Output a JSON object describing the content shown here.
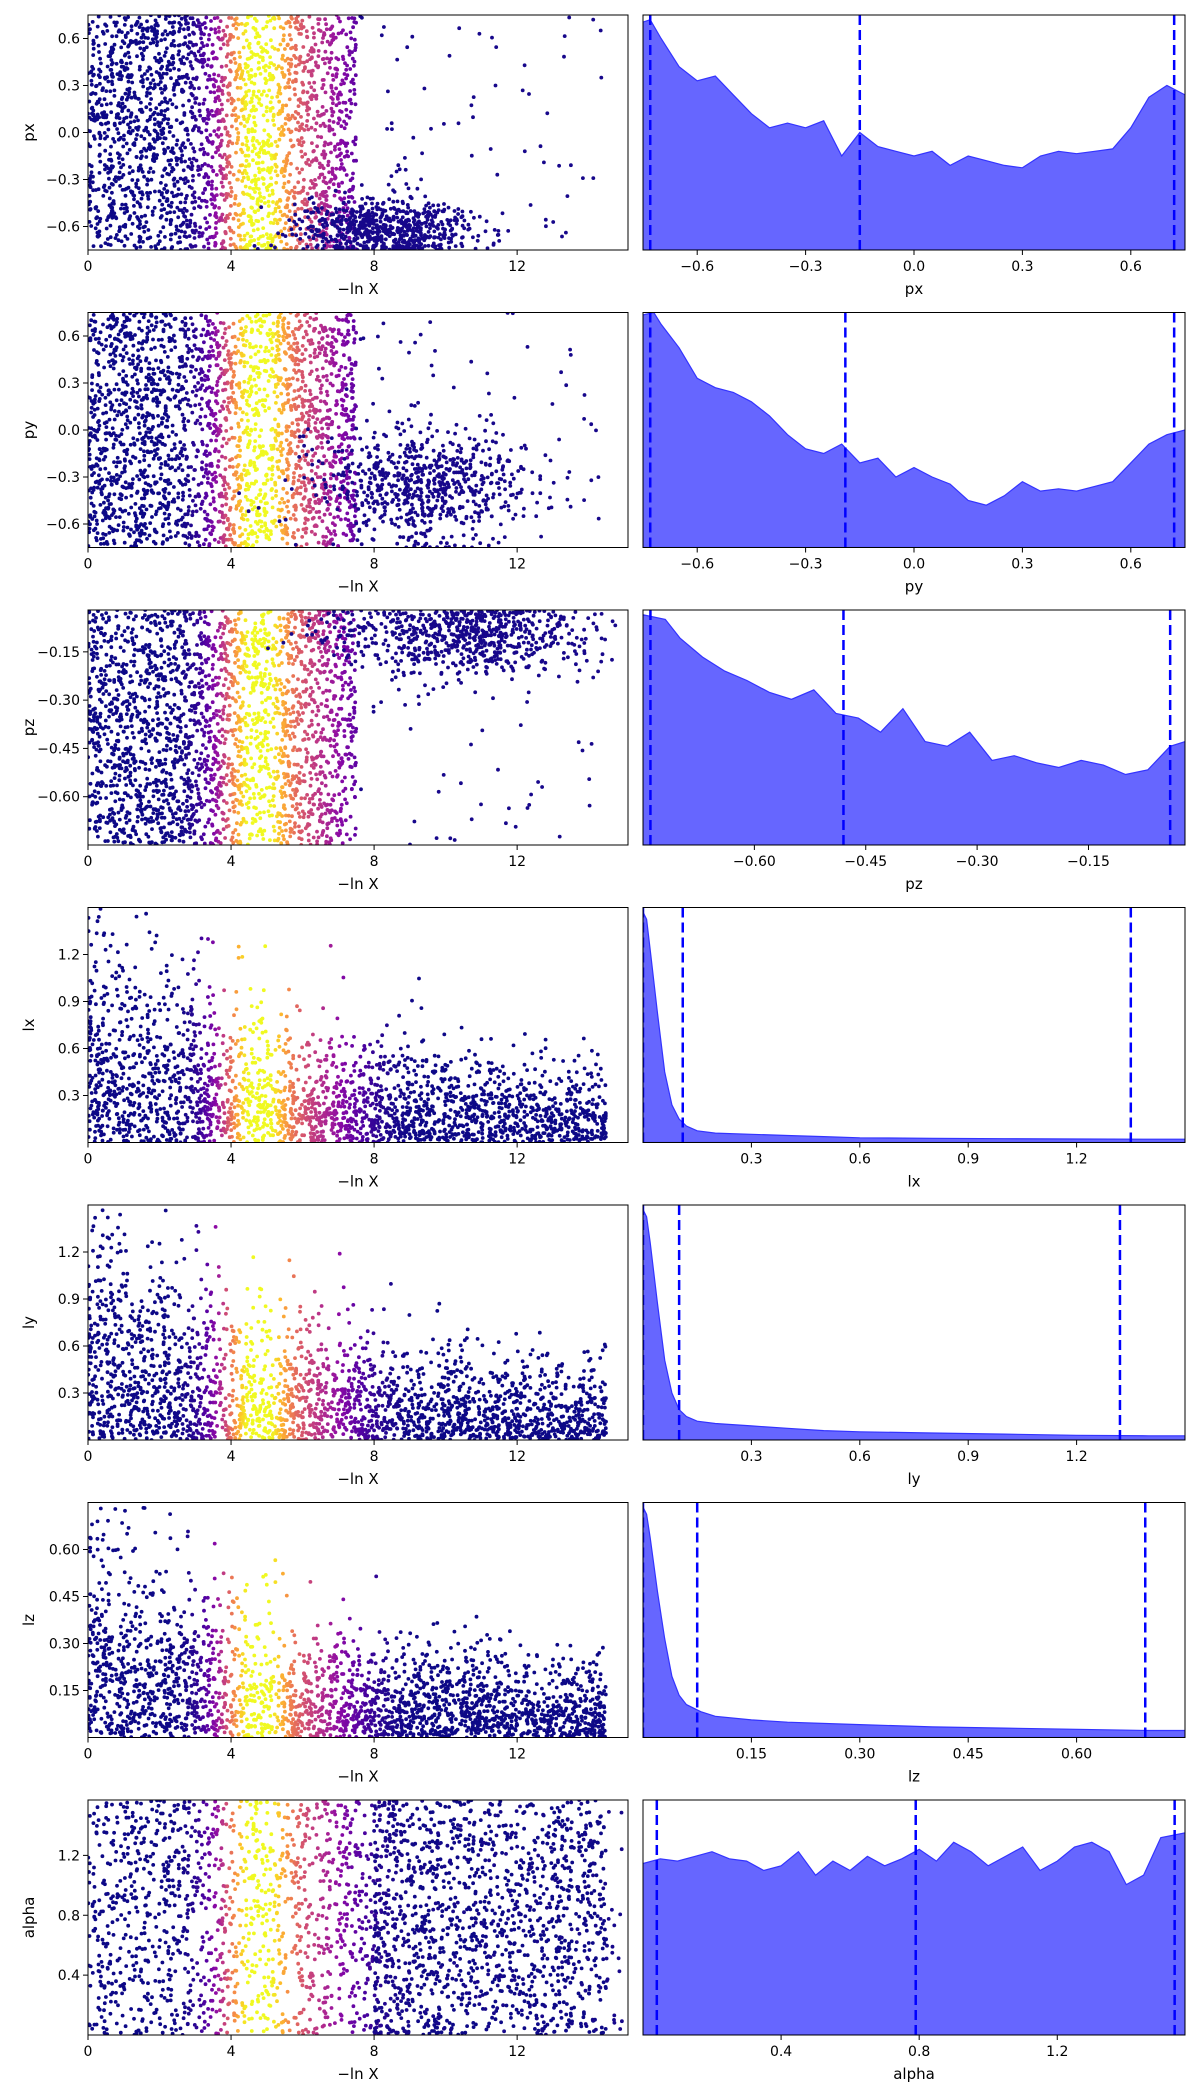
{
  "figure": {
    "colors": {
      "kde_fill": "#6666ff",
      "kde_edge": "#3333ff",
      "quantile_line": "#0000ff",
      "axes_edge": "#000000"
    },
    "scatter_colormap": "plasma"
  },
  "chart_data": [
    {
      "type": "scatter",
      "param": "px",
      "xlabel": "−ln X",
      "ylabel": "px",
      "xlim": [
        0,
        15.1
      ],
      "ylim": [
        -0.75,
        0.75
      ],
      "xticks": [
        0,
        4,
        8,
        12
      ],
      "xtick_labels": [
        "0",
        "4",
        "8",
        "12"
      ],
      "yticks": [
        -0.6,
        -0.3,
        0.0,
        0.3,
        0.6
      ],
      "ytick_labels": [
        "−0.6",
        "−0.3",
        "0.0",
        "0.3",
        "0.6"
      ],
      "peak_lnx": 4.7,
      "dense_until": 7.5,
      "tail": {
        "center_x": 8.3,
        "center_y": -0.62,
        "spread_x": 1.2,
        "spread_y": 0.1
      }
    },
    {
      "type": "area",
      "param": "px",
      "xlabel": "px",
      "xlim": [
        -0.75,
        0.75
      ],
      "xticks": [
        -0.6,
        -0.3,
        0.0,
        0.3,
        0.6
      ],
      "xtick_labels": [
        "−0.6",
        "−0.3",
        "0.0",
        "0.3",
        "0.6"
      ],
      "quantiles": [
        -0.73,
        -0.15,
        0.72
      ],
      "density": {
        "x": [
          -0.75,
          -0.73,
          -0.7,
          -0.65,
          -0.6,
          -0.55,
          -0.5,
          -0.45,
          -0.4,
          -0.35,
          -0.3,
          -0.25,
          -0.2,
          -0.15,
          -0.1,
          -0.05,
          0.0,
          0.05,
          0.1,
          0.15,
          0.2,
          0.25,
          0.3,
          0.35,
          0.4,
          0.45,
          0.5,
          0.55,
          0.6,
          0.65,
          0.7,
          0.75
        ],
        "y": [
          0.97,
          0.98,
          0.9,
          0.78,
          0.72,
          0.74,
          0.66,
          0.58,
          0.52,
          0.54,
          0.52,
          0.55,
          0.4,
          0.5,
          0.44,
          0.42,
          0.4,
          0.42,
          0.36,
          0.4,
          0.38,
          0.36,
          0.35,
          0.4,
          0.42,
          0.41,
          0.42,
          0.43,
          0.52,
          0.65,
          0.7,
          0.66
        ]
      }
    },
    {
      "type": "scatter",
      "param": "py",
      "xlabel": "−ln X",
      "ylabel": "py",
      "xlim": [
        0,
        15.1
      ],
      "ylim": [
        -0.75,
        0.75
      ],
      "xticks": [
        0,
        4,
        8,
        12
      ],
      "xtick_labels": [
        "0",
        "4",
        "8",
        "12"
      ],
      "yticks": [
        -0.6,
        -0.3,
        0.0,
        0.3,
        0.6
      ],
      "ytick_labels": [
        "−0.6",
        "−0.3",
        "0.0",
        "0.3",
        "0.6"
      ],
      "peak_lnx": 4.7,
      "dense_until": 7.5,
      "tail": {
        "center_x": 9.5,
        "center_y": -0.35,
        "spread_x": 1.5,
        "spread_y": 0.18
      }
    },
    {
      "type": "area",
      "param": "py",
      "xlabel": "py",
      "xlim": [
        -0.75,
        0.75
      ],
      "xticks": [
        -0.6,
        -0.3,
        0.0,
        0.3,
        0.6
      ],
      "xtick_labels": [
        "−0.6",
        "−0.3",
        "0.0",
        "0.3",
        "0.6"
      ],
      "quantiles": [
        -0.73,
        -0.19,
        0.72
      ],
      "density": {
        "x": [
          -0.75,
          -0.72,
          -0.7,
          -0.65,
          -0.6,
          -0.55,
          -0.5,
          -0.45,
          -0.4,
          -0.35,
          -0.3,
          -0.25,
          -0.2,
          -0.15,
          -0.1,
          -0.05,
          0.0,
          0.05,
          0.1,
          0.15,
          0.2,
          0.25,
          0.3,
          0.35,
          0.4,
          0.45,
          0.5,
          0.55,
          0.6,
          0.65,
          0.7,
          0.75
        ],
        "y": [
          0.99,
          1.0,
          0.95,
          0.85,
          0.72,
          0.68,
          0.66,
          0.62,
          0.56,
          0.48,
          0.42,
          0.4,
          0.44,
          0.36,
          0.38,
          0.3,
          0.34,
          0.3,
          0.27,
          0.2,
          0.18,
          0.22,
          0.28,
          0.24,
          0.25,
          0.24,
          0.26,
          0.28,
          0.36,
          0.44,
          0.48,
          0.5
        ]
      }
    },
    {
      "type": "scatter",
      "param": "pz",
      "xlabel": "−ln X",
      "ylabel": "pz",
      "xlim": [
        0,
        15.1
      ],
      "ylim": [
        -0.75,
        -0.02
      ],
      "xticks": [
        0,
        4,
        8,
        12
      ],
      "xtick_labels": [
        "0",
        "4",
        "8",
        "12"
      ],
      "yticks": [
        -0.6,
        -0.45,
        -0.3,
        -0.15
      ],
      "ytick_labels": [
        "−0.60",
        "−0.45",
        "−0.30",
        "−0.15"
      ],
      "peak_lnx": 4.7,
      "dense_until": 7.5,
      "tail": {
        "center_x": 10.5,
        "center_y": -0.1,
        "spread_x": 1.8,
        "spread_y": 0.06
      }
    },
    {
      "type": "area",
      "param": "pz",
      "xlabel": "pz",
      "xlim": [
        -0.75,
        -0.02
      ],
      "xticks": [
        -0.6,
        -0.45,
        -0.3,
        -0.15
      ],
      "xtick_labels": [
        "−0.60",
        "−0.45",
        "−0.30",
        "−0.15"
      ],
      "quantiles": [
        -0.74,
        -0.48,
        -0.04
      ],
      "density": {
        "x": [
          -0.75,
          -0.72,
          -0.7,
          -0.67,
          -0.64,
          -0.61,
          -0.58,
          -0.55,
          -0.52,
          -0.49,
          -0.46,
          -0.43,
          -0.4,
          -0.37,
          -0.34,
          -0.31,
          -0.28,
          -0.25,
          -0.22,
          -0.19,
          -0.16,
          -0.13,
          -0.1,
          -0.07,
          -0.04,
          -0.02
        ],
        "y": [
          0.98,
          0.96,
          0.88,
          0.8,
          0.74,
          0.7,
          0.65,
          0.62,
          0.66,
          0.56,
          0.54,
          0.48,
          0.58,
          0.44,
          0.42,
          0.48,
          0.36,
          0.38,
          0.35,
          0.33,
          0.36,
          0.34,
          0.3,
          0.32,
          0.42,
          0.44
        ]
      }
    },
    {
      "type": "scatter",
      "param": "lx",
      "xlabel": "−ln X",
      "ylabel": "lx",
      "xlim": [
        0,
        15.1
      ],
      "ylim": [
        0,
        1.5
      ],
      "xticks": [
        0,
        4,
        8,
        12
      ],
      "xtick_labels": [
        "0",
        "4",
        "8",
        "12"
      ],
      "yticks": [
        0.3,
        0.6,
        0.9,
        1.2
      ],
      "ytick_labels": [
        "0.3",
        "0.6",
        "0.9",
        "1.2"
      ],
      "peak_lnx": 4.7,
      "dense_until": 14.5,
      "decay": true
    },
    {
      "type": "area",
      "param": "lx",
      "xlabel": "lx",
      "xlim": [
        0,
        1.5
      ],
      "xticks": [
        0.3,
        0.6,
        0.9,
        1.2
      ],
      "xtick_labels": [
        "0.3",
        "0.6",
        "0.9",
        "1.2"
      ],
      "quantiles": [
        0.0,
        0.11,
        1.35
      ],
      "density": {
        "x": [
          0.0,
          0.01,
          0.02,
          0.04,
          0.06,
          0.08,
          0.1,
          0.12,
          0.15,
          0.2,
          0.3,
          0.4,
          0.5,
          0.6,
          0.8,
          1.0,
          1.2,
          1.4,
          1.5
        ],
        "y": [
          0.98,
          0.95,
          0.82,
          0.55,
          0.3,
          0.16,
          0.1,
          0.07,
          0.05,
          0.04,
          0.035,
          0.03,
          0.025,
          0.02,
          0.018,
          0.016,
          0.015,
          0.014,
          0.014
        ]
      }
    },
    {
      "type": "scatter",
      "param": "ly",
      "xlabel": "−ln X",
      "ylabel": "ly",
      "xlim": [
        0,
        15.1
      ],
      "ylim": [
        0,
        1.5
      ],
      "xticks": [
        0,
        4,
        8,
        12
      ],
      "xtick_labels": [
        "0",
        "4",
        "8",
        "12"
      ],
      "yticks": [
        0.3,
        0.6,
        0.9,
        1.2
      ],
      "ytick_labels": [
        "0.3",
        "0.6",
        "0.9",
        "1.2"
      ],
      "peak_lnx": 4.7,
      "dense_until": 14.5,
      "decay": true
    },
    {
      "type": "area",
      "param": "ly",
      "xlabel": "ly",
      "xlim": [
        0,
        1.5
      ],
      "xticks": [
        0.3,
        0.6,
        0.9,
        1.2
      ],
      "xtick_labels": [
        "0.3",
        "0.6",
        "0.9",
        "1.2"
      ],
      "quantiles": [
        0.0,
        0.1,
        1.32
      ],
      "density": {
        "x": [
          0.0,
          0.01,
          0.02,
          0.04,
          0.06,
          0.08,
          0.1,
          0.12,
          0.15,
          0.2,
          0.3,
          0.4,
          0.5,
          0.6,
          0.8,
          1.0,
          1.2,
          1.4,
          1.5
        ],
        "y": [
          0.98,
          0.95,
          0.84,
          0.58,
          0.34,
          0.2,
          0.13,
          0.1,
          0.08,
          0.07,
          0.06,
          0.05,
          0.04,
          0.035,
          0.03,
          0.025,
          0.02,
          0.018,
          0.018
        ]
      }
    },
    {
      "type": "scatter",
      "param": "lz",
      "xlabel": "−ln X",
      "ylabel": "lz",
      "xlim": [
        0,
        15.1
      ],
      "ylim": [
        0,
        0.75
      ],
      "xticks": [
        0,
        4,
        8,
        12
      ],
      "xtick_labels": [
        "0",
        "4",
        "8",
        "12"
      ],
      "yticks": [
        0.15,
        0.3,
        0.45,
        0.6
      ],
      "ytick_labels": [
        "0.15",
        "0.30",
        "0.45",
        "0.60"
      ],
      "peak_lnx": 4.7,
      "dense_until": 14.5,
      "decay": true
    },
    {
      "type": "area",
      "param": "lz",
      "xlabel": "lz",
      "xlim": [
        0,
        0.75
      ],
      "xticks": [
        0.15,
        0.3,
        0.45,
        0.6
      ],
      "xtick_labels": [
        "0.15",
        "0.30",
        "0.45",
        "0.60"
      ],
      "quantiles": [
        0.0,
        0.075,
        0.695
      ],
      "density": {
        "x": [
          0.0,
          0.005,
          0.01,
          0.02,
          0.03,
          0.04,
          0.05,
          0.06,
          0.08,
          0.1,
          0.15,
          0.2,
          0.3,
          0.4,
          0.5,
          0.6,
          0.7,
          0.75
        ],
        "y": [
          0.98,
          0.95,
          0.85,
          0.62,
          0.42,
          0.26,
          0.18,
          0.14,
          0.11,
          0.09,
          0.075,
          0.065,
          0.055,
          0.045,
          0.04,
          0.035,
          0.03,
          0.03
        ]
      }
    },
    {
      "type": "scatter",
      "param": "alpha",
      "xlabel": "−ln X",
      "ylabel": "alpha",
      "xlim": [
        0,
        15.1
      ],
      "ylim": [
        0,
        1.57
      ],
      "xticks": [
        0,
        4,
        8,
        12
      ],
      "xtick_labels": [
        "0",
        "4",
        "8",
        "12"
      ],
      "yticks": [
        0.4,
        0.8,
        1.2
      ],
      "ytick_labels": [
        "0.4",
        "0.8",
        "1.2"
      ],
      "peak_lnx": 4.7,
      "dense_until": 14.5,
      "uniform": true
    },
    {
      "type": "area",
      "param": "alpha",
      "xlabel": "alpha",
      "xlim": [
        0,
        1.57
      ],
      "xticks": [
        0.4,
        0.8,
        1.2
      ],
      "xtick_labels": [
        "0.4",
        "0.8",
        "1.2"
      ],
      "quantiles": [
        0.04,
        0.79,
        1.54
      ],
      "density": {
        "x": [
          0.0,
          0.05,
          0.1,
          0.15,
          0.2,
          0.25,
          0.3,
          0.35,
          0.4,
          0.45,
          0.5,
          0.55,
          0.6,
          0.65,
          0.7,
          0.75,
          0.8,
          0.85,
          0.9,
          0.95,
          1.0,
          1.05,
          1.1,
          1.15,
          1.2,
          1.25,
          1.3,
          1.35,
          1.4,
          1.45,
          1.5,
          1.57
        ],
        "y": [
          0.73,
          0.75,
          0.74,
          0.76,
          0.78,
          0.75,
          0.74,
          0.7,
          0.72,
          0.78,
          0.68,
          0.74,
          0.7,
          0.76,
          0.72,
          0.75,
          0.79,
          0.74,
          0.82,
          0.78,
          0.72,
          0.76,
          0.8,
          0.7,
          0.74,
          0.8,
          0.82,
          0.78,
          0.64,
          0.68,
          0.84,
          0.86
        ]
      }
    }
  ]
}
